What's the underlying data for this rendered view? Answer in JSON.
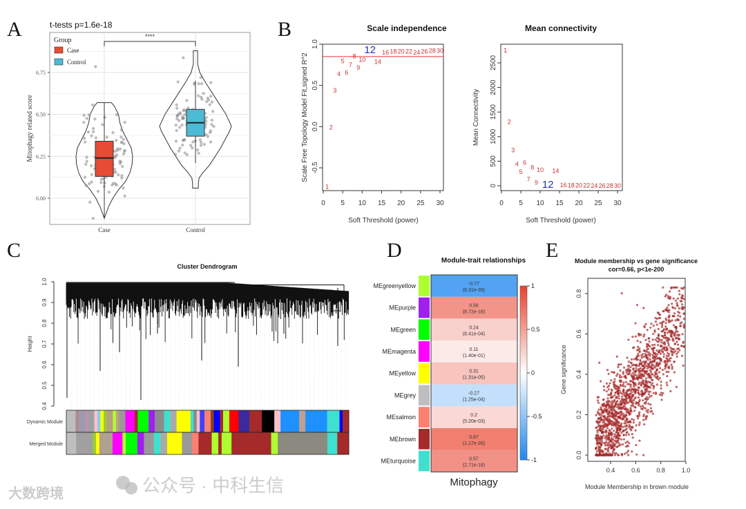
{
  "panels": {
    "a": "A",
    "b": "B",
    "c": "C",
    "d": "D",
    "e": "E"
  },
  "watermarks": {
    "left": "大数跨境",
    "right": "公众号 · 中科生信"
  },
  "chart_data": [
    {
      "id": "A",
      "type": "violin-box",
      "title": "t-tests p=1.6e-18",
      "significance": "****",
      "ylabel": "Mitophagy related score",
      "xlabel": "",
      "categories": [
        "Case",
        "Control"
      ],
      "legend": {
        "title": "Group",
        "entries": [
          "Case",
          "Control"
        ],
        "placement": "top-left"
      },
      "colors": {
        "Case": "#E64B35",
        "Control": "#4DBBD5"
      },
      "ylim": [
        5.85,
        6.92
      ],
      "yticks": [
        "6.00",
        "6.25",
        "6.50",
        "6.75"
      ],
      "boxes": [
        {
          "group": "Case",
          "min": 5.88,
          "q1": 6.13,
          "median": 6.24,
          "q3": 6.34,
          "max": 6.57
        },
        {
          "group": "Control",
          "min": 6.21,
          "q1": 6.37,
          "median": 6.45,
          "q3": 6.53,
          "max": 6.7
        }
      ],
      "density": {
        "Case": [
          [
            5.88,
            0
          ],
          [
            5.95,
            0.15
          ],
          [
            6.0,
            0.3
          ],
          [
            6.05,
            0.5
          ],
          [
            6.1,
            0.75
          ],
          [
            6.15,
            0.9
          ],
          [
            6.2,
            0.98
          ],
          [
            6.25,
            1
          ],
          [
            6.3,
            0.95
          ],
          [
            6.35,
            0.8
          ],
          [
            6.4,
            0.65
          ],
          [
            6.45,
            0.55
          ],
          [
            6.5,
            0.5
          ],
          [
            6.55,
            0.35
          ],
          [
            6.57,
            0.25
          ]
        ],
        "Control": [
          [
            6.06,
            0.08
          ],
          [
            6.09,
            0.08
          ],
          [
            6.12,
            0.1
          ],
          [
            6.15,
            0.2
          ],
          [
            6.2,
            0.4
          ],
          [
            6.3,
            0.7
          ],
          [
            6.4,
            0.95
          ],
          [
            6.43,
            1
          ],
          [
            6.5,
            0.85
          ],
          [
            6.6,
            0.55
          ],
          [
            6.7,
            0.25
          ],
          [
            6.75,
            0.12
          ],
          [
            6.8,
            0.06
          ],
          [
            6.88,
            0.06
          ]
        ]
      },
      "points_summary": {
        "Case": {
          "n": 100,
          "mean": 6.24,
          "sd": 0.14
        },
        "Control": {
          "n": 100,
          "mean": 6.45,
          "sd": 0.13
        }
      }
    },
    {
      "id": "B-left",
      "type": "scatter",
      "title": "Scale independence",
      "xlabel": "Soft Threshold (power)",
      "ylabel": "Scale Free Topology Model Fit,signed R^2",
      "xlim": [
        0,
        30
      ],
      "ylim": [
        -0.8,
        1.0
      ],
      "xticks": [
        0,
        5,
        10,
        15,
        20,
        25,
        30
      ],
      "yticks": [
        "-0.5",
        "0.0",
        "0.5",
        "1.0"
      ],
      "hline": 0.85,
      "highlight": 12,
      "x": [
        1,
        2,
        3,
        4,
        5,
        6,
        7,
        8,
        9,
        10,
        12,
        14,
        16,
        18,
        20,
        22,
        24,
        26,
        28,
        30
      ],
      "y": [
        -0.73,
        -0.01,
        0.44,
        0.64,
        0.71,
        0.74,
        0.75,
        0.77,
        0.8,
        0.81,
        0.85,
        0.87,
        0.9,
        0.91,
        0.91,
        0.91,
        0.9,
        0.91,
        0.92,
        0.92
      ]
    },
    {
      "id": "B-right",
      "type": "scatter",
      "title": "Mean connectivity",
      "xlabel": "Soft Threshold (power)",
      "ylabel": "Mean Connectivity",
      "xlim": [
        0,
        30
      ],
      "ylim": [
        0,
        2800
      ],
      "xticks": [
        0,
        5,
        10,
        15,
        20,
        25,
        30
      ],
      "yticks": [
        "0",
        "500",
        "1000",
        "1500",
        "2000",
        "2500"
      ],
      "highlight": 12,
      "x": [
        1,
        2,
        3,
        4,
        5,
        6,
        7,
        8,
        9,
        10,
        12,
        14,
        16,
        18,
        20,
        22,
        24,
        26,
        28,
        30
      ],
      "y": [
        2750,
        1300,
        720,
        440,
        280,
        190,
        130,
        90,
        60,
        45,
        30,
        20,
        12,
        8,
        5,
        4,
        3,
        2,
        1,
        1
      ]
    },
    {
      "id": "C",
      "type": "dendrogram",
      "title": "Cluster Dendrogram",
      "ylabel": "Height",
      "ylim": [
        0.4,
        1.0
      ],
      "yticks": [
        "0.4",
        "0.5",
        "0.6",
        "0.7",
        "0.8",
        "0.9",
        "1.0"
      ],
      "row_labels": [
        "Dynamic Module",
        "Merged Module"
      ],
      "dynamic": [
        [
          "#bebebe",
          3
        ],
        [
          "#b08a8a",
          1
        ],
        [
          "#9a9ab0",
          2
        ],
        [
          "#c090b0",
          1
        ],
        [
          "#a0a0a0",
          2
        ],
        [
          "#ffc0cb",
          1
        ],
        [
          "#87ceeb",
          1
        ],
        [
          "#ffff00",
          1
        ],
        [
          "#9acd32",
          1
        ],
        [
          "#b5a080",
          2
        ],
        [
          "#adff2f",
          1
        ],
        [
          "#c0a080",
          1
        ],
        [
          "#999999",
          2
        ],
        [
          "#ff00ff",
          3
        ],
        [
          "#a52a2a",
          1
        ],
        [
          "#00ff00",
          3.5
        ],
        [
          "#a020f0",
          2
        ],
        [
          "#8c8c8c",
          3
        ],
        [
          "#40e0d0",
          2
        ],
        [
          "#aaaaaa",
          2
        ],
        [
          "#ffff00",
          4.5
        ],
        [
          "#40e0d0",
          1
        ],
        [
          "#8b8b8b",
          1
        ],
        [
          "#ffc0cb",
          1
        ],
        [
          "#4040ff",
          1.5
        ],
        [
          "#fa8072",
          2
        ],
        [
          "#8b4513",
          1
        ],
        [
          "#0000ff",
          2
        ],
        [
          "#a52a2a",
          1
        ],
        [
          "#adff2f",
          2
        ],
        [
          "#ff0000",
          3
        ],
        [
          "#3a2aa0",
          3.5
        ],
        [
          "#a52a2a",
          4
        ],
        [
          "#000000",
          4
        ],
        [
          "#ffc0cb",
          2
        ],
        [
          "#1e90ff",
          6
        ],
        [
          "#c0a090",
          2
        ],
        [
          "#1e90ff",
          7
        ],
        [
          "#40e0d0",
          4
        ],
        [
          "#0000ff",
          1
        ],
        [
          "#a52a2a",
          2
        ]
      ],
      "merged": [
        [
          "#bebebe",
          3
        ],
        [
          "#a0a0a0",
          5
        ],
        [
          "#9acd32",
          1
        ],
        [
          "#ffff00",
          1
        ],
        [
          "#b0a090",
          4
        ],
        [
          "#ff00ff",
          3
        ],
        [
          "#adff2f",
          1
        ],
        [
          "#00ff00",
          3.5
        ],
        [
          "#a020f0",
          2
        ],
        [
          "#999999",
          3
        ],
        [
          "#40e0d0",
          2
        ],
        [
          "#aaaaaa",
          2
        ],
        [
          "#ffff00",
          4.5
        ],
        [
          "#999999",
          3
        ],
        [
          "#fa8072",
          2
        ],
        [
          "#a52a2a",
          4
        ],
        [
          "#adff2f",
          2
        ],
        [
          "#a52a2a",
          1
        ],
        [
          "#adff2f",
          3
        ],
        [
          "#a52a2a",
          12
        ],
        [
          "#adff2f",
          2
        ],
        [
          "#8a8a80",
          15
        ],
        [
          "#40e0d0",
          3
        ],
        [
          "#a52a2a",
          3.5
        ]
      ]
    },
    {
      "id": "D",
      "type": "heatmap",
      "title": "Module-trait relationships",
      "xlabel": "Mitophagy",
      "rows": [
        {
          "module": "MEgreenyellow",
          "color": "#ADFF2F",
          "cor": "-0.77",
          "p": "(8.31e-39)",
          "value": -0.77
        },
        {
          "module": "MEpurple",
          "color": "#A020F0",
          "cor": "0.56",
          "p": "(8.72e-18)",
          "value": 0.56
        },
        {
          "module": "MEgreen",
          "color": "#00FF00",
          "cor": "0.24",
          "p": "(8.41e-04)",
          "value": 0.24
        },
        {
          "module": "MEmagenta",
          "color": "#FF00FF",
          "cor": "0.11",
          "p": "(1.40e-01)",
          "value": 0.11
        },
        {
          "module": "MEyellow",
          "color": "#FFFF00",
          "cor": "0.31",
          "p": "(1.31e-05)",
          "value": 0.31
        },
        {
          "module": "MEgrey",
          "color": "#BEBEBE",
          "cor": "-0.27",
          "p": "(1.25e-04)",
          "value": -0.27
        },
        {
          "module": "MEsalmon",
          "color": "#FA8072",
          "cor": "0.2",
          "p": "(5.20e-03)",
          "value": 0.2
        },
        {
          "module": "MEbrown",
          "color": "#A52A2A",
          "cor": "0.67",
          "p": "(1.17e-26)",
          "value": 0.67
        },
        {
          "module": "MEturquoise",
          "color": "#40E0D0",
          "cor": "0.57",
          "p": "(2.71e-18)",
          "value": 0.57
        }
      ],
      "colorbar": {
        "ticks": [
          "1",
          "0.5",
          "0",
          "-0.5",
          "-1"
        ],
        "low": "#1E88F0",
        "mid": "#FFFFFF",
        "high": "#E8402A"
      }
    },
    {
      "id": "E",
      "type": "scatter",
      "title": "Module membership vs gene significance",
      "subtitle": "cor=0.66, p<1e-200",
      "xlabel": "Module Membership in brown module",
      "ylabel": "Gene significance",
      "xlim": [
        0.25,
        1.0
      ],
      "ylim": [
        -0.02,
        0.86
      ],
      "xticks": [
        "0.4",
        "0.6",
        "0.8",
        "1.0"
      ],
      "yticks": [
        "0.0",
        "0.2",
        "0.4",
        "0.6",
        "0.8"
      ],
      "color": "#A52A2A",
      "cor": 0.66,
      "points_summary": {
        "n": 1500
      }
    }
  ]
}
